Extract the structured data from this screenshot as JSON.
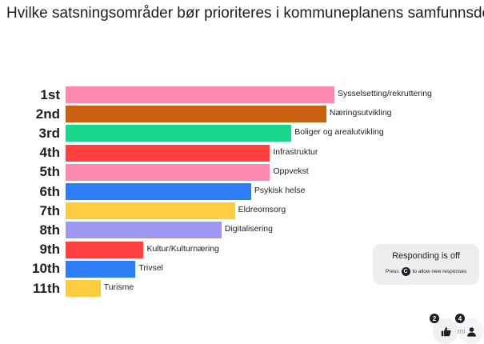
{
  "chart_data": {
    "type": "bar",
    "orientation": "horizontal",
    "title": "Hvilke satsningsområder bør prioriteres i kommuneplanens samfunnsdel?",
    "ranks": [
      "1st",
      "2nd",
      "3rd",
      "4th",
      "5th",
      "6th",
      "7th",
      "8th",
      "9th",
      "10th",
      "11th"
    ],
    "categories": [
      "Sysselsetting/rekruttering",
      "Næringsutvikling",
      "Boliger og arealutvikling",
      "Infrastruktur",
      "Oppvekst",
      "Psykisk helse",
      "Eldreomsorg",
      "Digitalisering",
      "Kultur/Kulturnæring",
      "Trivsel",
      "Turisme"
    ],
    "values": [
      100,
      97,
      84,
      76,
      76,
      69,
      63,
      58,
      29,
      26,
      13
    ],
    "colors": [
      "#ff88b0",
      "#c8610f",
      "#19d68a",
      "#ff4040",
      "#ff88b0",
      "#2d7df6",
      "#ffcc3f",
      "#9f98f2",
      "#ff4040",
      "#2d7df6",
      "#ffcc3f"
    ]
  },
  "status": {
    "title": "Responding is off",
    "press": "Press",
    "key": "C",
    "suffix": "to allow new responses"
  },
  "reactions": {
    "likes_count": "2",
    "participants_count": "4",
    "faint_text": "mi",
    "like_icon": "thumbs-up-icon",
    "people_icon": "person-icon"
  }
}
